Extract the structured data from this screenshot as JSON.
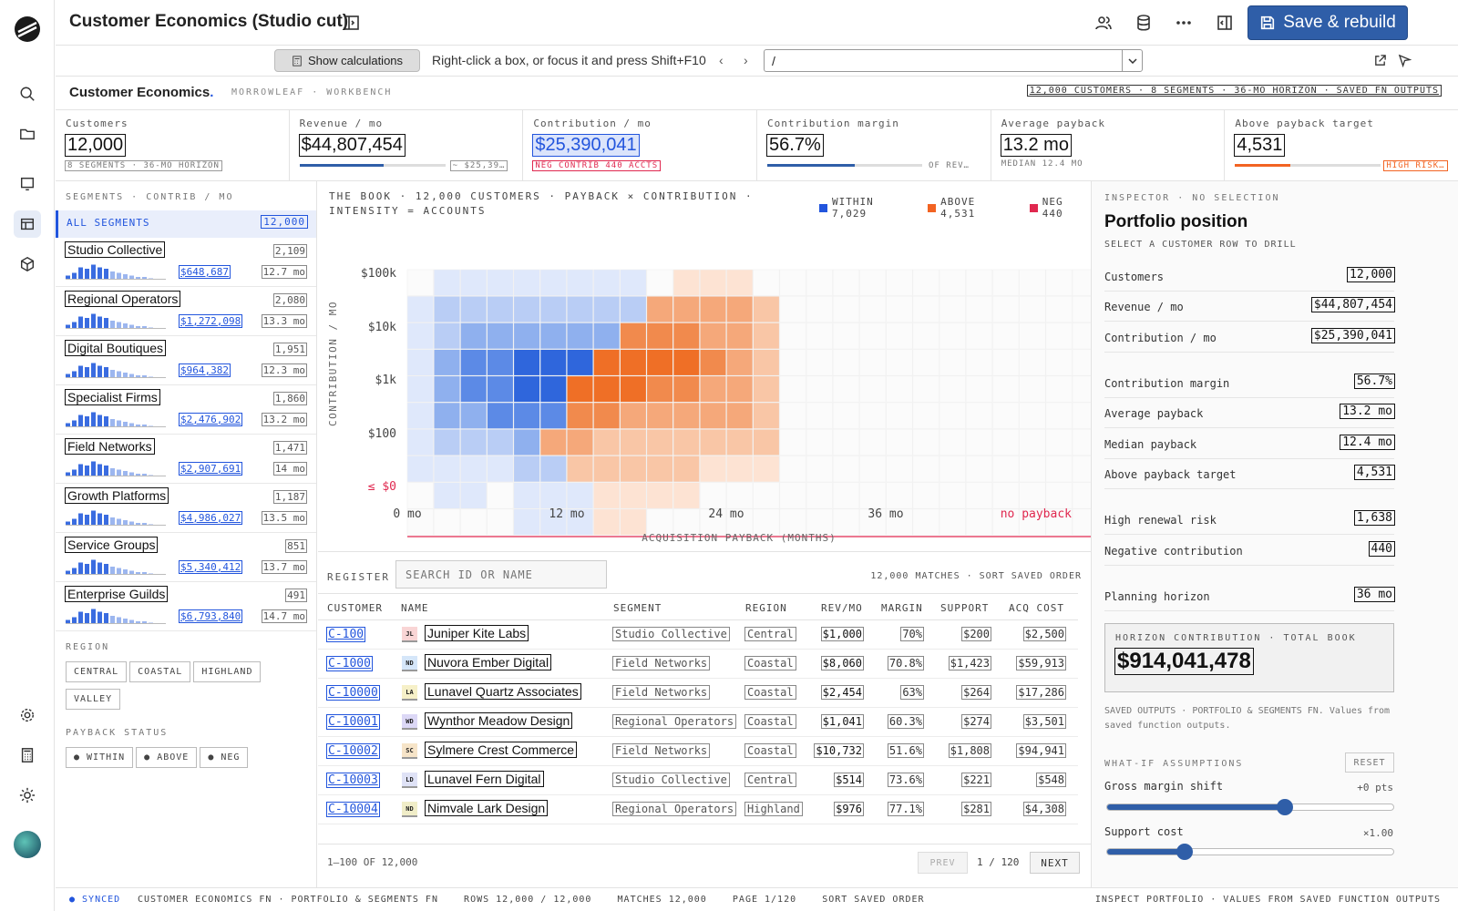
{
  "topbar": {
    "title": "Customer Economics (Studio cut)",
    "save_label": "Save & rebuild"
  },
  "calcbar": {
    "show_calc_label": "Show calculations",
    "hint": "Right-click a box, or focus it and press Shift+F10",
    "path_value": "/"
  },
  "header": {
    "brand": "Customer Economics",
    "brand_dot": ".",
    "sub": "MORROWLEAF · WORKBENCH",
    "summary": "12,000 CUSTOMERS · 8 SEGMENTS · 36-MO HORIZON · SAVED FN OUTPUTS"
  },
  "kpis": [
    {
      "label": "Customers",
      "value": "12,000",
      "sub": "8 SEGMENTS · 36-MO HORIZON"
    },
    {
      "label": "Revenue / mo",
      "value": "$44,807,454",
      "note": "~ $25,39…",
      "bar": 0.58
    },
    {
      "label": "Contribution / mo",
      "value": "$25,390,041",
      "sub": "NEG CONTRIB 440 ACCTS"
    },
    {
      "label": "Contribution margin",
      "value": "56.7%",
      "note": "OF REV…",
      "bar": 0.567
    },
    {
      "label": "Average payback",
      "value": "13.2 mo",
      "sub": "MEDIAN 12.4 MO"
    },
    {
      "label": "Above payback target",
      "value": "4,531",
      "note": "HIGH RISK…",
      "bar": 0.38
    }
  ],
  "left": {
    "segments_label": "SEGMENTS · CONTRIB / MO",
    "all_label": "ALL SEGMENTS",
    "all_count": "12,000",
    "segments": [
      {
        "name": "Studio Collective",
        "count": "2,109",
        "rev": "$648,687",
        "pay": "12.7 mo"
      },
      {
        "name": "Regional Operators",
        "count": "2,080",
        "rev": "$1,272,098",
        "pay": "13.3 mo"
      },
      {
        "name": "Digital Boutiques",
        "count": "1,951",
        "rev": "$964,382",
        "pay": "12.3 mo"
      },
      {
        "name": "Specialist Firms",
        "count": "1,860",
        "rev": "$2,476,902",
        "pay": "13.2 mo"
      },
      {
        "name": "Field Networks",
        "count": "1,471",
        "rev": "$2,907,691",
        "pay": "14 mo"
      },
      {
        "name": "Growth Platforms",
        "count": "1,187",
        "rev": "$4,986,027",
        "pay": "13.5 mo"
      },
      {
        "name": "Service Groups",
        "count": "851",
        "rev": "$5,340,412",
        "pay": "13.7 mo"
      },
      {
        "name": "Enterprise Guilds",
        "count": "491",
        "rev": "$6,793,840",
        "pay": "14.7 mo"
      }
    ],
    "region_label": "REGION",
    "regions": [
      "CENTRAL",
      "COASTAL",
      "HIGHLAND",
      "VALLEY"
    ],
    "payback_label": "PAYBACK STATUS",
    "payback": [
      "● WITHIN",
      "● ABOVE",
      "● NEG"
    ]
  },
  "heatmap": {
    "title": "THE BOOK · 12,000 CUSTOMERS · PAYBACK × CONTRIBUTION · INTENSITY = ACCOUNTS",
    "legend": [
      {
        "label": "WITHIN 7,029",
        "color": "#2255dd"
      },
      {
        "label": "ABOVE 4,531",
        "color": "#f26322"
      },
      {
        "label": "NEG 440",
        "color": "#e0284f"
      }
    ],
    "ylabel": "CONTRIBUTION / MO",
    "xlabel": "ACQUISITION PAYBACK (MONTHS)",
    "yticks": [
      "$100k",
      "$10k",
      "$1k",
      "$100",
      "≤ $0"
    ],
    "xticks": [
      "0 mo",
      "12 mo",
      "24 mo",
      "36 mo",
      "no payback"
    ]
  },
  "chart_data": {
    "type": "heatmap",
    "title": "THE BOOK · 12,000 CUSTOMERS · PAYBACK × CONTRIBUTION · INTENSITY = ACCOUNTS",
    "xlabel": "ACQUISITION PAYBACK (MONTHS)",
    "ylabel": "CONTRIBUTION / MO",
    "xticks": [
      "0 mo",
      "12 mo",
      "24 mo",
      "36 mo",
      "no payback"
    ],
    "yticks": [
      "$100k",
      "$10k",
      "$1k",
      "$100",
      "≤ $0"
    ],
    "series": [
      {
        "name": "WITHIN",
        "total": 7029
      },
      {
        "name": "ABOVE",
        "total": 4531
      },
      {
        "name": "NEG",
        "total": 440
      }
    ],
    "intensity_rows_top_to_bottom": [
      [
        0,
        1,
        1,
        1,
        1,
        1,
        1,
        1,
        1,
        0,
        1,
        1,
        1,
        0,
        0,
        0,
        0,
        0,
        0,
        0,
        0,
        0,
        0,
        0,
        0,
        0
      ],
      [
        1,
        2,
        2,
        2,
        2,
        2,
        2,
        2,
        2,
        3,
        3,
        3,
        3,
        2,
        0,
        0,
        0,
        0,
        0,
        0,
        0,
        0,
        0,
        0,
        0,
        0
      ],
      [
        1,
        2,
        3,
        3,
        3,
        3,
        3,
        3,
        4,
        4,
        4,
        3,
        3,
        2,
        0,
        0,
        0,
        0,
        0,
        0,
        0,
        0,
        0,
        0,
        0,
        0
      ],
      [
        1,
        3,
        4,
        4,
        5,
        5,
        5,
        5,
        5,
        5,
        5,
        4,
        3,
        2,
        0,
        0,
        0,
        0,
        0,
        0,
        0,
        0,
        0,
        0,
        0,
        0
      ],
      [
        1,
        3,
        4,
        4,
        5,
        5,
        5,
        5,
        5,
        4,
        4,
        3,
        3,
        2,
        0,
        0,
        0,
        0,
        0,
        0,
        0,
        0,
        0,
        0,
        0,
        0
      ],
      [
        1,
        3,
        3,
        4,
        4,
        4,
        4,
        4,
        3,
        3,
        3,
        3,
        3,
        2,
        0,
        0,
        0,
        0,
        0,
        0,
        0,
        0,
        0,
        0,
        0,
        0
      ],
      [
        1,
        2,
        2,
        2,
        3,
        3,
        3,
        2,
        2,
        2,
        2,
        2,
        2,
        2,
        0,
        0,
        0,
        0,
        0,
        0,
        0,
        0,
        0,
        0,
        0,
        0
      ],
      [
        1,
        1,
        1,
        1,
        2,
        2,
        2,
        2,
        2,
        2,
        2,
        1,
        1,
        1,
        0,
        0,
        0,
        0,
        0,
        0,
        0,
        0,
        0,
        0,
        0,
        0
      ],
      [
        0,
        1,
        1,
        0,
        1,
        1,
        1,
        1,
        1,
        1,
        1,
        0,
        0,
        0,
        0,
        0,
        0,
        0,
        0,
        0,
        0,
        0,
        0,
        0,
        0,
        0
      ],
      [
        0,
        0,
        0,
        0,
        1,
        1,
        1,
        1,
        1,
        0,
        0,
        0,
        0,
        0,
        0,
        0,
        0,
        0,
        0,
        0,
        0,
        0,
        0,
        0,
        0,
        0
      ]
    ],
    "class_rows_top_to_bottom": [
      "WWWWWWWWWAAAAAAAAAAAAAAAAA",
      "WWWWWWWWWAAAAAAAAAAAAAAAAA",
      "WWWWWWWWAAAAAAAAAAAAAAAAAA",
      "WWWWWWWAAAAAAAAAAAAAAAAAAA",
      "WWWWWWAAAAAAAAAAAAAAAAAAAA",
      "WWWWWWAAAAAAAAAAAAAAAAAAAA",
      "WWWWWAAAAAAAAAAAAAAAAAAAAA",
      "WWWWWWAAAAAAAAAAAAAAAAAAAA",
      "WWWWWWWAAAAAAAAAAAAAAAAAAA",
      "WWWWWWWAAAAAAAAAAAAAAAAAAA"
    ],
    "neg_no_payback_cell": true
  },
  "register": {
    "label": "REGISTER",
    "search_placeholder": "SEARCH ID OR NAME",
    "meta": "12,000 MATCHES · SORT SAVED ORDER",
    "columns": [
      "CUSTOMER",
      "NAME",
      "SEGMENT",
      "REGION",
      "REV/MO",
      "MARGIN",
      "SUPPORT",
      "ACQ COST"
    ],
    "rows": [
      {
        "id": "C-100",
        "av": "JL",
        "avc": "#f9d5d5",
        "name": "Juniper Kite Labs",
        "seg": "Studio Collective",
        "reg": "Central",
        "rev": "$1,000",
        "mar": "70%",
        "sup": "$200",
        "acq": "$2,500"
      },
      {
        "id": "C-1000",
        "av": "ND",
        "avc": "#d5e6f9",
        "name": "Nuvora Ember Digital",
        "seg": "Field Networks",
        "reg": "Coastal",
        "rev": "$8,060",
        "mar": "70.8%",
        "sup": "$1,423",
        "acq": "$59,913"
      },
      {
        "id": "C-10000",
        "av": "LA",
        "avc": "#f6f0c8",
        "name": "Lunavel Quartz Associates",
        "seg": "Field Networks",
        "reg": "Coastal",
        "rev": "$2,454",
        "mar": "63%",
        "sup": "$264",
        "acq": "$17,286"
      },
      {
        "id": "C-10001",
        "av": "WD",
        "avc": "#dcd8f6",
        "name": "Wynthor Meadow Design",
        "seg": "Regional Operators",
        "reg": "Coastal",
        "rev": "$1,041",
        "mar": "60.3%",
        "sup": "$274",
        "acq": "$3,501"
      },
      {
        "id": "C-10002",
        "av": "SC",
        "avc": "#f6e4c8",
        "name": "Sylmere Crest Commerce",
        "seg": "Field Networks",
        "reg": "Coastal",
        "rev": "$10,732",
        "mar": "51.6%",
        "sup": "$1,808",
        "acq": "$94,941"
      },
      {
        "id": "C-10003",
        "av": "LD",
        "avc": "#dfe2f6",
        "name": "Lunavel Fern Digital",
        "seg": "Studio Collective",
        "reg": "Central",
        "rev": "$514",
        "mar": "73.6%",
        "sup": "$221",
        "acq": "$548"
      },
      {
        "id": "C-10004",
        "av": "ND",
        "avc": "#f0edc8",
        "name": "Nimvale Lark Design",
        "seg": "Regional Operators",
        "reg": "Highland",
        "rev": "$976",
        "mar": "77.1%",
        "sup": "$281",
        "acq": "$4,308"
      }
    ],
    "range": "1–100 OF 12,000",
    "prev": "PREV",
    "page": "1 / 120",
    "next": "NEXT"
  },
  "inspector": {
    "label": "INSPECTOR · NO SELECTION",
    "title": "Portfolio position",
    "hint": "SELECT A CUSTOMER ROW TO DRILL",
    "rows": [
      {
        "k": "Customers",
        "v": "12,000"
      },
      {
        "k": "Revenue / mo",
        "v": "$44,807,454"
      },
      {
        "k": "Contribution / mo",
        "v": "$25,390,041"
      },
      {
        "k": "Contribution margin",
        "v": "56.7%"
      },
      {
        "k": "Average payback",
        "v": "13.2 mo"
      },
      {
        "k": "Median payback",
        "v": "12.4 mo"
      },
      {
        "k": "Above payback target",
        "v": "4,531"
      },
      {
        "k": "High renewal risk",
        "v": "1,638"
      },
      {
        "k": "Negative contribution",
        "v": "440"
      },
      {
        "k": "Planning horizon",
        "v": "36 mo"
      }
    ],
    "horizon_label": "HORIZON CONTRIBUTION · TOTAL BOOK",
    "horizon_value": "$914,041,478",
    "saved_note": "SAVED OUTPUTS · PORTFOLIO & SEGMENTS FN. Values from saved function outputs.",
    "whatif_label": "WHAT-IF ASSUMPTIONS",
    "reset": "RESET",
    "slider1_label": "Gross margin shift",
    "slider1_value": "+0 pts",
    "slider1_level": 0.62,
    "slider2_label": "Support cost",
    "slider2_value": "×1.00",
    "slider2_level": 0.27
  },
  "status": {
    "synced": "● SYNCED",
    "items": "CUSTOMER ECONOMICS FN · PORTFOLIO & SEGMENTS FN    ROWS 12,000 / 12,000    MATCHES 12,000    PAGE 1/120    SORT SAVED ORDER",
    "right": "INSPECT PORTFOLIO · VALUES FROM SAVED FUNCTION OUTPUTS"
  },
  "colors": {
    "accent": "#2f5ea8",
    "within": "#2255dd",
    "above": "#f26322",
    "neg": "#e0284f"
  }
}
